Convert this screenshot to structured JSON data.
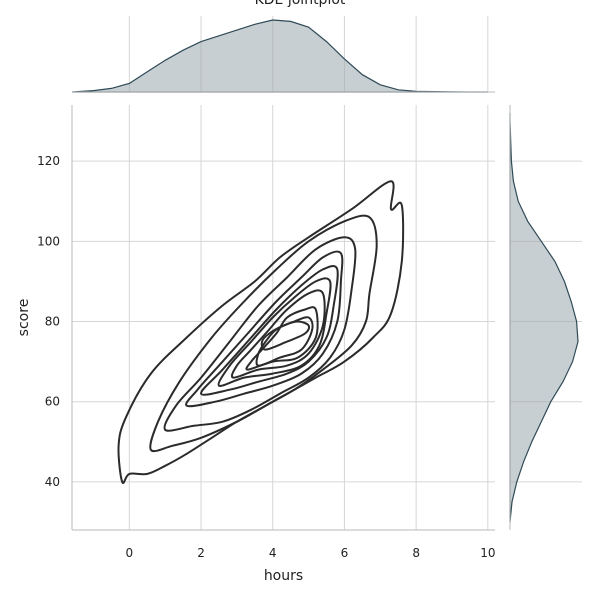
{
  "chart_data": {
    "type": "kde_jointplot",
    "title": "KDE jointplot",
    "xlabel": "hours",
    "ylabel": "score",
    "xlim": [
      -1.6,
      10.2
    ],
    "ylim": [
      28,
      134
    ],
    "xticks": [
      0,
      2,
      4,
      6,
      8,
      10
    ],
    "yticks": [
      40,
      60,
      80,
      100,
      120
    ],
    "grid": true,
    "color": "#2f4a57",
    "joint_contours": [
      {
        "level": 1,
        "points": [
          [
            -0.2,
            40
          ],
          [
            0.0,
            42
          ],
          [
            0.5,
            42
          ],
          [
            1.0,
            44
          ],
          [
            1.6,
            47
          ],
          [
            2.3,
            51
          ],
          [
            3.0,
            55
          ],
          [
            3.8,
            59
          ],
          [
            4.6,
            63
          ],
          [
            5.2,
            66
          ],
          [
            6.0,
            70
          ],
          [
            6.8,
            76
          ],
          [
            7.3,
            82
          ],
          [
            7.6,
            95
          ],
          [
            7.6,
            109
          ],
          [
            7.3,
            108
          ],
          [
            7.3,
            115
          ],
          [
            6.2,
            108
          ],
          [
            5.0,
            101
          ],
          [
            4.2,
            96
          ],
          [
            3.5,
            90
          ],
          [
            2.6,
            84
          ],
          [
            1.6,
            76
          ],
          [
            0.6,
            67
          ],
          [
            -0.1,
            56
          ],
          [
            -0.3,
            49
          ]
        ]
      },
      {
        "level": 2,
        "points": [
          [
            0.6,
            48
          ],
          [
            1.2,
            49
          ],
          [
            2.0,
            51
          ],
          [
            3.0,
            55
          ],
          [
            3.8,
            59
          ],
          [
            4.6,
            63
          ],
          [
            5.4,
            68
          ],
          [
            6.2,
            74
          ],
          [
            6.6,
            80
          ],
          [
            6.7,
            87
          ],
          [
            6.9,
            99
          ],
          [
            6.7,
            106
          ],
          [
            6.0,
            105
          ],
          [
            5.0,
            100
          ],
          [
            4.1,
            93
          ],
          [
            3.2,
            85
          ],
          [
            2.3,
            76
          ],
          [
            1.4,
            65
          ],
          [
            0.8,
            55
          ]
        ]
      },
      {
        "level": 3,
        "points": [
          [
            1.0,
            53
          ],
          [
            1.8,
            54
          ],
          [
            2.6,
            55
          ],
          [
            3.4,
            58
          ],
          [
            4.2,
            62
          ],
          [
            5.0,
            66
          ],
          [
            5.6,
            71
          ],
          [
            6.0,
            78
          ],
          [
            6.2,
            88
          ],
          [
            6.3,
            98
          ],
          [
            6.0,
            101
          ],
          [
            5.2,
            98
          ],
          [
            4.4,
            91
          ],
          [
            3.6,
            84
          ],
          [
            2.8,
            75
          ],
          [
            2.0,
            66
          ],
          [
            1.3,
            59
          ]
        ]
      },
      {
        "level": 4,
        "points": [
          [
            1.6,
            59
          ],
          [
            2.4,
            60
          ],
          [
            3.2,
            62
          ],
          [
            4.0,
            64
          ],
          [
            4.8,
            67
          ],
          [
            5.4,
            72
          ],
          [
            5.8,
            80
          ],
          [
            5.9,
            90
          ],
          [
            5.9,
            97
          ],
          [
            5.4,
            96
          ],
          [
            4.8,
            91
          ],
          [
            4.1,
            85
          ],
          [
            3.3,
            77
          ],
          [
            2.5,
            69
          ],
          [
            1.9,
            63
          ]
        ]
      },
      {
        "level": 5,
        "points": [
          [
            2.0,
            62
          ],
          [
            2.8,
            63
          ],
          [
            3.6,
            65
          ],
          [
            4.4,
            67
          ],
          [
            5.0,
            70
          ],
          [
            5.5,
            76
          ],
          [
            5.7,
            84
          ],
          [
            5.8,
            93
          ],
          [
            5.4,
            93
          ],
          [
            4.8,
            89
          ],
          [
            4.1,
            83
          ],
          [
            3.4,
            76
          ],
          [
            2.6,
            68
          ]
        ]
      },
      {
        "level": 6,
        "points": [
          [
            2.5,
            64
          ],
          [
            3.2,
            66
          ],
          [
            4.0,
            67
          ],
          [
            4.8,
            69
          ],
          [
            5.3,
            74
          ],
          [
            5.5,
            82
          ],
          [
            5.6,
            90
          ],
          [
            5.2,
            90
          ],
          [
            4.6,
            86
          ],
          [
            4.0,
            81
          ],
          [
            3.4,
            75
          ],
          [
            2.8,
            69
          ]
        ]
      },
      {
        "level": 7,
        "points": [
          [
            2.9,
            66
          ],
          [
            3.6,
            68
          ],
          [
            4.4,
            69
          ],
          [
            5.0,
            72
          ],
          [
            5.4,
            79
          ],
          [
            5.4,
            87
          ],
          [
            5.0,
            87
          ],
          [
            4.4,
            83
          ],
          [
            3.9,
            78
          ],
          [
            3.4,
            73
          ],
          [
            3.0,
            69
          ]
        ]
      },
      {
        "level": 8,
        "points": [
          [
            3.3,
            68
          ],
          [
            4.0,
            70
          ],
          [
            4.7,
            71
          ],
          [
            5.2,
            76
          ],
          [
            5.2,
            83
          ],
          [
            4.9,
            83
          ],
          [
            4.4,
            81
          ],
          [
            4.1,
            77
          ],
          [
            3.7,
            73
          ],
          [
            3.4,
            70
          ]
        ]
      },
      {
        "level": 9,
        "points": [
          [
            3.6,
            69
          ],
          [
            4.2,
            71
          ],
          [
            4.8,
            73
          ],
          [
            5.1,
            78
          ],
          [
            5.0,
            81
          ],
          [
            4.6,
            80
          ],
          [
            4.1,
            78
          ],
          [
            3.8,
            75
          ],
          [
            3.6,
            72
          ]
        ]
      },
      {
        "level": 10,
        "points": [
          [
            3.8,
            73
          ],
          [
            4.4,
            75
          ],
          [
            4.9,
            77
          ],
          [
            5.0,
            79
          ],
          [
            4.7,
            80
          ],
          [
            4.3,
            79
          ],
          [
            3.9,
            77
          ],
          [
            3.7,
            75
          ]
        ]
      }
    ],
    "marginal_x": {
      "x": [
        -1.6,
        -1.0,
        -0.5,
        0,
        0.5,
        1,
        1.5,
        2,
        2.5,
        3,
        3.5,
        4,
        4.5,
        5,
        5.5,
        6,
        6.5,
        7,
        7.5,
        8,
        8.5,
        9,
        9.5,
        10
      ],
      "density": [
        0.0,
        0.02,
        0.05,
        0.12,
        0.28,
        0.44,
        0.58,
        0.7,
        0.78,
        0.86,
        0.94,
        1.0,
        0.98,
        0.9,
        0.7,
        0.46,
        0.24,
        0.1,
        0.03,
        0.01,
        0.005,
        0.002,
        0.0,
        0.0
      ]
    },
    "marginal_y": {
      "y": [
        30,
        35,
        40,
        45,
        50,
        55,
        60,
        65,
        70,
        75,
        80,
        85,
        90,
        95,
        100,
        105,
        110,
        115,
        120,
        125,
        130,
        132
      ],
      "density": [
        0.0,
        0.03,
        0.1,
        0.2,
        0.32,
        0.46,
        0.6,
        0.78,
        0.92,
        1.0,
        0.98,
        0.9,
        0.8,
        0.66,
        0.46,
        0.26,
        0.12,
        0.05,
        0.02,
        0.01,
        0.0,
        0.0
      ]
    }
  }
}
